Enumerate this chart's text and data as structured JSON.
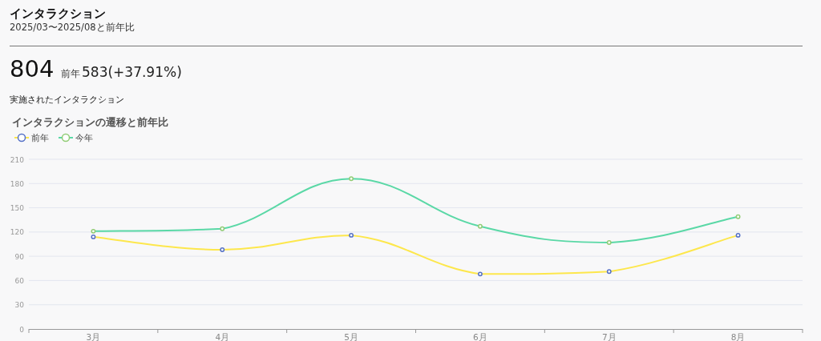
{
  "chart_data": {
    "type": "line",
    "title": "インタラクション",
    "subtitle": "2025/03〜2025/08と前年比",
    "annotations": [
      "804",
      "前年",
      "583(+37.91%)",
      "実施されたインタラクション",
      "インタラクションの遷移と前年比"
    ],
    "categories": [
      "3月",
      "4月",
      "5月",
      "6月",
      "7月",
      "8月"
    ],
    "series": [
      {
        "name": "前年",
        "color": "#fde74c",
        "values": [
          114,
          98,
          116,
          68,
          71,
          116
        ]
      },
      {
        "name": "今年",
        "color": "#5ad8a6",
        "values": [
          121,
          124,
          186,
          127,
          107,
          139
        ]
      }
    ],
    "ylim": [
      0,
      210
    ],
    "yticks": [
      0,
      30,
      60,
      90,
      120,
      150,
      180,
      210
    ],
    "grid": "y",
    "legend": "top left",
    "marker": "circle",
    "line_style": "solid"
  }
}
